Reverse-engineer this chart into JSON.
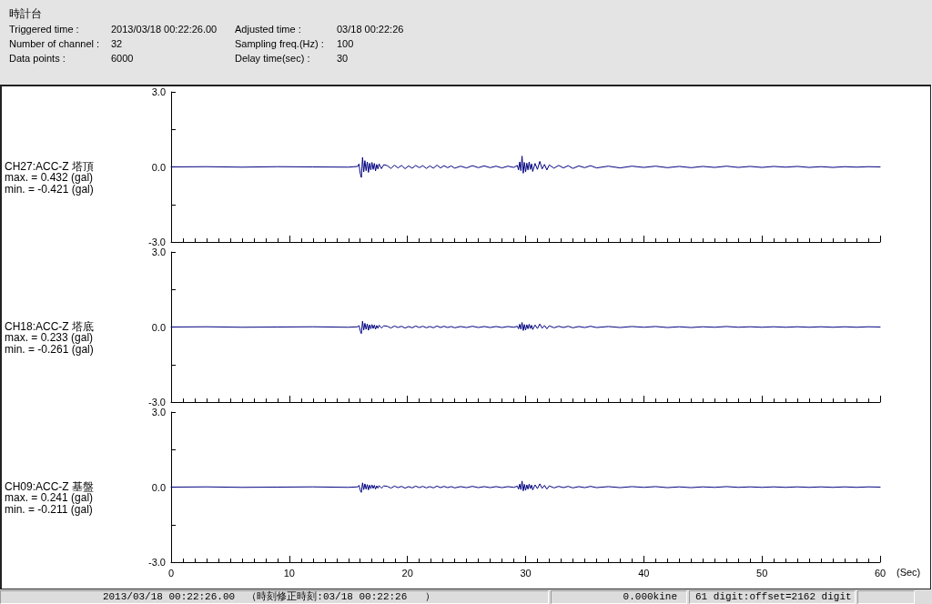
{
  "chart_data": [
    {
      "type": "other",
      "title": "時計台",
      "annotations": [
        "Triggered time :",
        "2013/03/18 00:22:26.00",
        "Number of channel :",
        "32",
        "Data points :",
        "6000",
        "Adjusted time :",
        "03/18 00:22:26",
        "Sampling freq.(Hz) :",
        "100",
        "Delay time(sec) :",
        "30"
      ]
    },
    {
      "type": "line",
      "title": "CH27:ACC-Z 塔頂",
      "annotations": [
        "max. = 0.432 (gal)",
        "min. = -0.421 (gal)"
      ],
      "x": [
        0,
        3,
        6,
        9,
        12,
        15,
        15.8,
        15.9,
        16,
        16.1,
        16.2,
        16.3,
        16.4,
        16.5,
        16.6,
        16.7,
        16.8,
        16.9,
        17,
        17.1,
        17.2,
        17.3,
        17.4,
        17.5,
        17.6,
        17.8,
        18,
        18.3,
        18.6,
        18.9,
        19.2,
        19.5,
        19.8,
        20.1,
        20.4,
        20.7,
        21,
        21.3,
        21.6,
        21.9,
        22.2,
        22.5,
        22.8,
        23.1,
        23.4,
        23.7,
        24,
        24.5,
        25,
        25.5,
        26,
        26.5,
        27,
        27.5,
        28,
        28.5,
        29,
        29.3,
        29.4,
        29.5,
        29.6,
        29.7,
        29.8,
        29.9,
        30,
        30.1,
        30.2,
        30.3,
        30.4,
        30.5,
        30.6,
        30.8,
        31,
        31.2,
        31.4,
        31.6,
        31.8,
        32,
        32.4,
        32.8,
        33.2,
        33.6,
        34,
        34.5,
        35,
        35.5,
        36,
        37,
        38,
        39,
        40,
        41,
        42,
        43,
        44,
        45,
        46,
        47,
        48,
        49,
        50,
        51,
        52,
        53,
        54,
        55,
        56,
        57,
        58,
        59,
        60
      ],
      "series": [
        {
          "color": "#000080",
          "values": [
            0,
            0.01,
            -0.01,
            0.01,
            0,
            -0.01,
            0.02,
            0.12,
            -0.25,
            -0.421,
            0.38,
            -0.2,
            0.25,
            -0.15,
            0.2,
            -0.22,
            0.15,
            -0.12,
            0.18,
            -0.1,
            0.14,
            -0.16,
            0.1,
            -0.08,
            0.12,
            -0.07,
            0.09,
            0.05,
            -0.06,
            0.07,
            -0.04,
            0.06,
            -0.07,
            0.04,
            -0.05,
            0.06,
            -0.03,
            0.05,
            -0.06,
            0.04,
            -0.05,
            0.07,
            -0.04,
            0.05,
            -0.03,
            0.04,
            -0.05,
            0.03,
            -0.04,
            0.05,
            -0.03,
            0.04,
            -0.03,
            0.03,
            -0.04,
            0.03,
            -0.02,
            0.06,
            -0.12,
            0.2,
            -0.15,
            0.432,
            -0.25,
            0.18,
            -0.2,
            0.15,
            -0.12,
            0.2,
            -0.1,
            0.12,
            -0.18,
            0.14,
            -0.1,
            0.22,
            -0.08,
            0.1,
            -0.12,
            0.08,
            -0.05,
            0.06,
            -0.04,
            0.05,
            -0.06,
            0.04,
            -0.03,
            0.05,
            -0.04,
            0.03,
            -0.04,
            0.03,
            -0.02,
            0.03,
            -0.03,
            0.02,
            -0.03,
            0.02,
            -0.02,
            0.03,
            -0.02,
            0.02,
            -0.02,
            0.02,
            -0.01,
            0.02,
            -0.02,
            0.01,
            -0.02,
            0.01,
            -0.01,
            0.01,
            0
          ]
        }
      ],
      "xlim": [
        0,
        60
      ],
      "xticks": [
        0,
        {
          "value": 1,
          "label": null
        },
        {
          "value": 2,
          "label": null
        },
        {
          "value": 3,
          "label": null
        },
        {
          "value": 4,
          "label": null
        },
        {
          "value": 5,
          "label": null
        },
        {
          "value": 6,
          "label": null
        },
        {
          "value": 7,
          "label": null
        },
        {
          "value": 8,
          "label": null
        },
        {
          "value": 9,
          "label": null
        },
        10,
        {
          "value": 11,
          "label": null
        },
        {
          "value": 12,
          "label": null
        },
        {
          "value": 13,
          "label": null
        },
        {
          "value": 14,
          "label": null
        },
        {
          "value": 15,
          "label": null
        },
        {
          "value": 16,
          "label": null
        },
        {
          "value": 17,
          "label": null
        },
        {
          "value": 18,
          "label": null
        },
        {
          "value": 19,
          "label": null
        },
        20,
        {
          "value": 21,
          "label": null
        },
        {
          "value": 22,
          "label": null
        },
        {
          "value": 23,
          "label": null
        },
        {
          "value": 24,
          "label": null
        },
        {
          "value": 25,
          "label": null
        },
        {
          "value": 26,
          "label": null
        },
        {
          "value": 27,
          "label": null
        },
        {
          "value": 28,
          "label": null
        },
        {
          "value": 29,
          "label": null
        },
        30,
        {
          "value": 31,
          "label": null
        },
        {
          "value": 32,
          "label": null
        },
        {
          "value": 33,
          "label": null
        },
        {
          "value": 34,
          "label": null
        },
        {
          "value": 35,
          "label": null
        },
        {
          "value": 36,
          "label": null
        },
        {
          "value": 37,
          "label": null
        },
        {
          "value": 38,
          "label": null
        },
        {
          "value": 39,
          "label": null
        },
        40,
        {
          "value": 41,
          "label": null
        },
        {
          "value": 42,
          "label": null
        },
        {
          "value": 43,
          "label": null
        },
        {
          "value": 44,
          "label": null
        },
        {
          "value": 45,
          "label": null
        },
        {
          "value": 46,
          "label": null
        },
        {
          "value": 47,
          "label": null
        },
        {
          "value": 48,
          "label": null
        },
        {
          "value": 49,
          "label": null
        },
        50,
        {
          "value": 51,
          "label": null
        },
        {
          "value": 52,
          "label": null
        },
        {
          "value": 53,
          "label": null
        },
        {
          "value": 54,
          "label": null
        },
        {
          "value": 55,
          "label": null
        },
        {
          "value": 56,
          "label": null
        },
        {
          "value": 57,
          "label": null
        },
        {
          "value": 58,
          "label": null
        },
        {
          "value": 59,
          "label": null
        },
        60
      ],
      "ylim": [
        -3,
        3
      ],
      "yticks": [
        {
          "value": -3,
          "label": "-3.0"
        },
        {
          "value": -1.5,
          "label": null
        },
        {
          "value": 0,
          "label": "0.0"
        },
        {
          "value": 1.5,
          "label": null
        },
        {
          "value": 3,
          "label": "3.0"
        }
      ],
      "tick_labels": "y"
    },
    {
      "type": "line",
      "title": "CH18:ACC-Z 塔底",
      "annotations": [
        "max. = 0.233 (gal)",
        "min. = -0.261 (gal)"
      ],
      "x": [
        0,
        3,
        6,
        9,
        12,
        15,
        15.8,
        15.9,
        16,
        16.1,
        16.2,
        16.3,
        16.4,
        16.5,
        16.6,
        16.7,
        16.8,
        16.9,
        17,
        17.1,
        17.2,
        17.3,
        17.4,
        17.5,
        17.6,
        17.8,
        18,
        18.3,
        18.6,
        18.9,
        19.2,
        19.5,
        19.8,
        20.1,
        20.4,
        20.7,
        21,
        21.3,
        21.6,
        21.9,
        22.2,
        22.5,
        22.8,
        23.1,
        23.4,
        23.7,
        24,
        24.5,
        25,
        25.5,
        26,
        26.5,
        27,
        27.5,
        28,
        28.5,
        29,
        29.3,
        29.4,
        29.5,
        29.6,
        29.7,
        29.8,
        29.9,
        30,
        30.1,
        30.2,
        30.3,
        30.4,
        30.5,
        30.6,
        30.8,
        31,
        31.2,
        31.4,
        31.6,
        31.8,
        32,
        32.4,
        32.8,
        33.2,
        33.6,
        34,
        34.5,
        35,
        35.5,
        36,
        37,
        38,
        39,
        40,
        41,
        42,
        43,
        44,
        45,
        46,
        47,
        48,
        49,
        50,
        51,
        52,
        53,
        54,
        55,
        56,
        57,
        58,
        59,
        60
      ],
      "series": [
        {
          "color": "#000080",
          "values": [
            0,
            0.01,
            -0.01,
            0,
            0.01,
            -0.01,
            0.01,
            0.06,
            -0.14,
            -0.261,
            0.233,
            -0.12,
            0.15,
            -0.09,
            0.12,
            -0.13,
            0.09,
            -0.07,
            0.1,
            -0.06,
            0.08,
            -0.09,
            0.06,
            -0.05,
            0.07,
            -0.04,
            0.05,
            0.03,
            -0.04,
            0.04,
            -0.02,
            0.03,
            -0.04,
            0.02,
            -0.03,
            0.04,
            -0.02,
            0.03,
            -0.03,
            0.02,
            -0.03,
            0.04,
            -0.02,
            0.03,
            -0.02,
            0.02,
            -0.03,
            0.02,
            -0.02,
            0.03,
            -0.02,
            0.02,
            -0.02,
            0.02,
            -0.02,
            0.02,
            -0.01,
            0.03,
            -0.07,
            0.11,
            -0.09,
            0.18,
            -0.14,
            0.1,
            -0.12,
            0.09,
            -0.07,
            0.11,
            -0.06,
            0.07,
            -0.1,
            0.08,
            -0.06,
            0.12,
            -0.05,
            0.06,
            -0.07,
            0.05,
            -0.03,
            0.03,
            -0.02,
            0.03,
            -0.03,
            0.02,
            -0.02,
            0.03,
            -0.02,
            0.02,
            -0.02,
            0.02,
            -0.01,
            0.02,
            -0.02,
            0.01,
            -0.02,
            0.01,
            -0.01,
            0.02,
            -0.01,
            0.01,
            -0.01,
            0.01,
            -0.01,
            0.01,
            -0.01,
            0.01,
            -0.01,
            0.01,
            -0.01,
            0.01,
            0
          ]
        }
      ],
      "xlim": [
        0,
        60
      ],
      "xticks": [
        0,
        {
          "value": 1,
          "label": null
        },
        {
          "value": 2,
          "label": null
        },
        {
          "value": 3,
          "label": null
        },
        {
          "value": 4,
          "label": null
        },
        {
          "value": 5,
          "label": null
        },
        {
          "value": 6,
          "label": null
        },
        {
          "value": 7,
          "label": null
        },
        {
          "value": 8,
          "label": null
        },
        {
          "value": 9,
          "label": null
        },
        10,
        {
          "value": 11,
          "label": null
        },
        {
          "value": 12,
          "label": null
        },
        {
          "value": 13,
          "label": null
        },
        {
          "value": 14,
          "label": null
        },
        {
          "value": 15,
          "label": null
        },
        {
          "value": 16,
          "label": null
        },
        {
          "value": 17,
          "label": null
        },
        {
          "value": 18,
          "label": null
        },
        {
          "value": 19,
          "label": null
        },
        20,
        {
          "value": 21,
          "label": null
        },
        {
          "value": 22,
          "label": null
        },
        {
          "value": 23,
          "label": null
        },
        {
          "value": 24,
          "label": null
        },
        {
          "value": 25,
          "label": null
        },
        {
          "value": 26,
          "label": null
        },
        {
          "value": 27,
          "label": null
        },
        {
          "value": 28,
          "label": null
        },
        {
          "value": 29,
          "label": null
        },
        30,
        {
          "value": 31,
          "label": null
        },
        {
          "value": 32,
          "label": null
        },
        {
          "value": 33,
          "label": null
        },
        {
          "value": 34,
          "label": null
        },
        {
          "value": 35,
          "label": null
        },
        {
          "value": 36,
          "label": null
        },
        {
          "value": 37,
          "label": null
        },
        {
          "value": 38,
          "label": null
        },
        {
          "value": 39,
          "label": null
        },
        40,
        {
          "value": 41,
          "label": null
        },
        {
          "value": 42,
          "label": null
        },
        {
          "value": 43,
          "label": null
        },
        {
          "value": 44,
          "label": null
        },
        {
          "value": 45,
          "label": null
        },
        {
          "value": 46,
          "label": null
        },
        {
          "value": 47,
          "label": null
        },
        {
          "value": 48,
          "label": null
        },
        {
          "value": 49,
          "label": null
        },
        50,
        {
          "value": 51,
          "label": null
        },
        {
          "value": 52,
          "label": null
        },
        {
          "value": 53,
          "label": null
        },
        {
          "value": 54,
          "label": null
        },
        {
          "value": 55,
          "label": null
        },
        {
          "value": 56,
          "label": null
        },
        {
          "value": 57,
          "label": null
        },
        {
          "value": 58,
          "label": null
        },
        {
          "value": 59,
          "label": null
        },
        60
      ],
      "ylim": [
        -3,
        3
      ],
      "yticks": [
        {
          "value": -3,
          "label": "-3.0"
        },
        {
          "value": -1.5,
          "label": null
        },
        {
          "value": 0,
          "label": "0.0"
        },
        {
          "value": 1.5,
          "label": null
        },
        {
          "value": 3,
          "label": "3.0"
        }
      ],
      "tick_labels": "y"
    },
    {
      "type": "line",
      "title": "CH09:ACC-Z 基盤",
      "annotations": [
        "max. = 0.241 (gal)",
        "min. = -0.211 (gal)"
      ],
      "xlabel": "(Sec)",
      "x": [
        0,
        3,
        6,
        9,
        12,
        15,
        15.8,
        15.9,
        16,
        16.1,
        16.2,
        16.3,
        16.4,
        16.5,
        16.6,
        16.7,
        16.8,
        16.9,
        17,
        17.1,
        17.2,
        17.3,
        17.4,
        17.5,
        17.6,
        17.8,
        18,
        18.3,
        18.6,
        18.9,
        19.2,
        19.5,
        19.8,
        20.1,
        20.4,
        20.7,
        21,
        21.3,
        21.6,
        21.9,
        22.2,
        22.5,
        22.8,
        23.1,
        23.4,
        23.7,
        24,
        24.5,
        25,
        25.5,
        26,
        26.5,
        27,
        27.5,
        28,
        28.5,
        29,
        29.3,
        29.4,
        29.5,
        29.6,
        29.7,
        29.8,
        29.9,
        30,
        30.1,
        30.2,
        30.3,
        30.4,
        30.5,
        30.6,
        30.8,
        31,
        31.2,
        31.4,
        31.6,
        31.8,
        32,
        32.4,
        32.8,
        33.2,
        33.6,
        34,
        34.5,
        35,
        35.5,
        36,
        37,
        38,
        39,
        40,
        41,
        42,
        43,
        44,
        45,
        46,
        47,
        48,
        49,
        50,
        51,
        52,
        53,
        54,
        55,
        56,
        57,
        58,
        59,
        60
      ],
      "series": [
        {
          "color": "#000080",
          "values": [
            0,
            0.01,
            -0.01,
            0,
            0.01,
            -0.01,
            0.01,
            0.07,
            -0.12,
            -0.211,
            0.17,
            -0.1,
            0.13,
            -0.08,
            0.1,
            -0.11,
            0.08,
            -0.06,
            0.09,
            -0.05,
            0.07,
            -0.08,
            0.05,
            -0.04,
            0.06,
            -0.04,
            0.05,
            0.03,
            -0.04,
            0.04,
            -0.02,
            0.03,
            -0.04,
            0.02,
            -0.03,
            0.04,
            -0.02,
            0.03,
            -0.03,
            0.02,
            -0.03,
            0.04,
            -0.02,
            0.03,
            -0.02,
            0.02,
            -0.03,
            0.02,
            -0.02,
            0.03,
            -0.02,
            0.02,
            -0.02,
            0.02,
            -0.02,
            0.02,
            -0.01,
            0.04,
            -0.08,
            0.12,
            -0.1,
            0.241,
            -0.15,
            0.11,
            -0.13,
            0.09,
            -0.08,
            0.12,
            -0.06,
            0.08,
            -0.11,
            0.09,
            -0.06,
            0.13,
            -0.05,
            0.07,
            -0.08,
            0.05,
            -0.03,
            0.03,
            -0.02,
            0.03,
            -0.03,
            0.02,
            -0.02,
            0.03,
            -0.02,
            0.02,
            -0.02,
            0.02,
            -0.01,
            0.02,
            -0.02,
            0.01,
            -0.02,
            0.01,
            -0.01,
            0.02,
            -0.01,
            0.01,
            -0.01,
            0.01,
            -0.01,
            0.01,
            -0.01,
            0.01,
            -0.01,
            0.01,
            -0.01,
            0.01,
            0
          ]
        }
      ],
      "xlim": [
        0,
        60
      ],
      "xticks": [
        0,
        {
          "value": 1,
          "label": null
        },
        {
          "value": 2,
          "label": null
        },
        {
          "value": 3,
          "label": null
        },
        {
          "value": 4,
          "label": null
        },
        {
          "value": 5,
          "label": null
        },
        {
          "value": 6,
          "label": null
        },
        {
          "value": 7,
          "label": null
        },
        {
          "value": 8,
          "label": null
        },
        {
          "value": 9,
          "label": null
        },
        10,
        {
          "value": 11,
          "label": null
        },
        {
          "value": 12,
          "label": null
        },
        {
          "value": 13,
          "label": null
        },
        {
          "value": 14,
          "label": null
        },
        {
          "value": 15,
          "label": null
        },
        {
          "value": 16,
          "label": null
        },
        {
          "value": 17,
          "label": null
        },
        {
          "value": 18,
          "label": null
        },
        {
          "value": 19,
          "label": null
        },
        20,
        {
          "value": 21,
          "label": null
        },
        {
          "value": 22,
          "label": null
        },
        {
          "value": 23,
          "label": null
        },
        {
          "value": 24,
          "label": null
        },
        {
          "value": 25,
          "label": null
        },
        {
          "value": 26,
          "label": null
        },
        {
          "value": 27,
          "label": null
        },
        {
          "value": 28,
          "label": null
        },
        {
          "value": 29,
          "label": null
        },
        30,
        {
          "value": 31,
          "label": null
        },
        {
          "value": 32,
          "label": null
        },
        {
          "value": 33,
          "label": null
        },
        {
          "value": 34,
          "label": null
        },
        {
          "value": 35,
          "label": null
        },
        {
          "value": 36,
          "label": null
        },
        {
          "value": 37,
          "label": null
        },
        {
          "value": 38,
          "label": null
        },
        {
          "value": 39,
          "label": null
        },
        40,
        {
          "value": 41,
          "label": null
        },
        {
          "value": 42,
          "label": null
        },
        {
          "value": 43,
          "label": null
        },
        {
          "value": 44,
          "label": null
        },
        {
          "value": 45,
          "label": null
        },
        {
          "value": 46,
          "label": null
        },
        {
          "value": 47,
          "label": null
        },
        {
          "value": 48,
          "label": null
        },
        {
          "value": 49,
          "label": null
        },
        50,
        {
          "value": 51,
          "label": null
        },
        {
          "value": 52,
          "label": null
        },
        {
          "value": 53,
          "label": null
        },
        {
          "value": 54,
          "label": null
        },
        {
          "value": 55,
          "label": null
        },
        {
          "value": 56,
          "label": null
        },
        {
          "value": 57,
          "label": null
        },
        {
          "value": 58,
          "label": null
        },
        {
          "value": 59,
          "label": null
        },
        60
      ],
      "ylim": [
        -3,
        3
      ],
      "yticks": [
        {
          "value": -3,
          "label": "-3.0"
        },
        {
          "value": -1.5,
          "label": null
        },
        {
          "value": 0,
          "label": "0.0"
        },
        {
          "value": 1.5,
          "label": null
        },
        {
          "value": 3,
          "label": "3.0"
        }
      ]
    },
    {
      "type": "other",
      "annotations": [
        "2013/03/18 00:22:26.00  （時刻修正時刻:03/18 00:22:26   ）",
        "0.000kine",
        "61 digit:offset=2162 digit"
      ]
    }
  ]
}
